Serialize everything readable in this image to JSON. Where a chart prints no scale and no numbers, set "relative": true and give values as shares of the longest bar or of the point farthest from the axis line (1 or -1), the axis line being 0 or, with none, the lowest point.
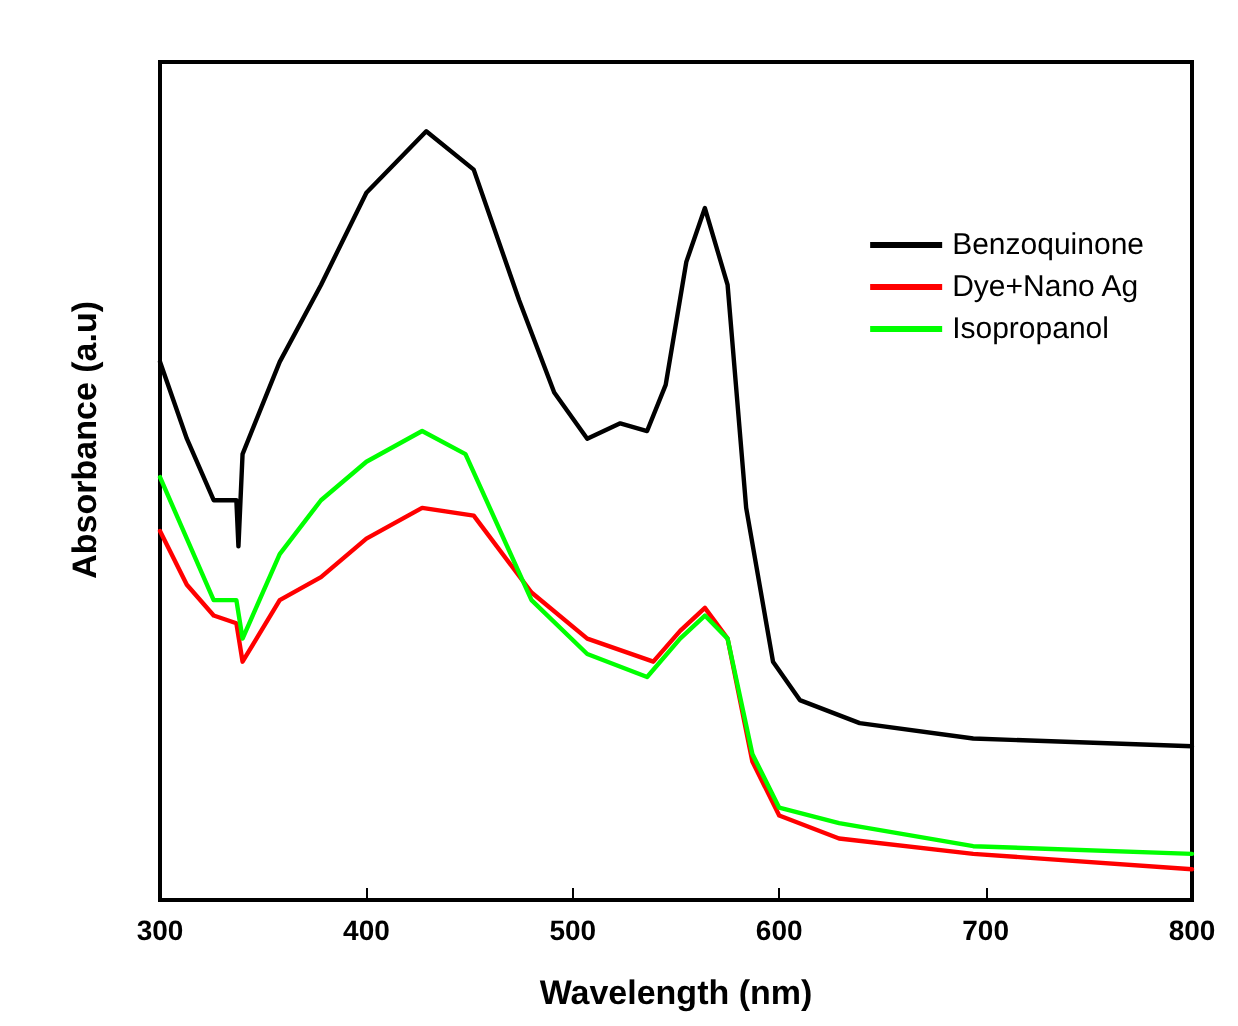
{
  "chart_data": {
    "type": "line",
    "relative": true,
    "xlabel": "Wavelength (nm)",
    "ylabel": "Absorbance (a.u)",
    "xlim": [
      300,
      800
    ],
    "xticks": [
      300,
      400,
      500,
      600,
      700,
      800
    ],
    "legend": "top right",
    "marker": "none",
    "line_style": "solid",
    "grid": false,
    "series": [
      {
        "name": "Benzoquinone",
        "color": "#000000",
        "x": [
          300,
          313,
          326,
          337,
          338,
          340,
          358,
          378,
          400,
          429,
          452,
          474,
          491,
          507,
          523,
          536,
          545,
          555,
          564,
          575,
          584,
          597,
          610,
          639,
          694,
          800
        ],
        "values": [
          0.7,
          0.6,
          0.52,
          0.52,
          0.46,
          0.58,
          0.7,
          0.8,
          0.92,
          1.0,
          0.95,
          0.78,
          0.66,
          0.6,
          0.62,
          0.61,
          0.67,
          0.83,
          0.9,
          0.8,
          0.51,
          0.31,
          0.26,
          0.23,
          0.21,
          0.2
        ]
      },
      {
        "name": "Dye+Nano Ag",
        "color": "#ff0000",
        "x": [
          300,
          313,
          326,
          337,
          340,
          358,
          378,
          400,
          427,
          452,
          480,
          507,
          539,
          552,
          564,
          575,
          587,
          600,
          629,
          694,
          800
        ],
        "values": [
          0.48,
          0.41,
          0.37,
          0.36,
          0.31,
          0.39,
          0.42,
          0.47,
          0.51,
          0.5,
          0.4,
          0.34,
          0.31,
          0.35,
          0.38,
          0.34,
          0.18,
          0.11,
          0.08,
          0.06,
          0.04
        ]
      },
      {
        "name": "Isopropanol",
        "color": "#00ff00",
        "x": [
          300,
          313,
          326,
          337,
          340,
          358,
          378,
          400,
          427,
          448,
          480,
          507,
          536,
          552,
          564,
          575,
          587,
          600,
          629,
          694,
          800
        ],
        "values": [
          0.55,
          0.47,
          0.39,
          0.39,
          0.34,
          0.45,
          0.52,
          0.57,
          0.61,
          0.58,
          0.39,
          0.32,
          0.29,
          0.34,
          0.37,
          0.34,
          0.19,
          0.12,
          0.1,
          0.07,
          0.06
        ]
      }
    ]
  }
}
